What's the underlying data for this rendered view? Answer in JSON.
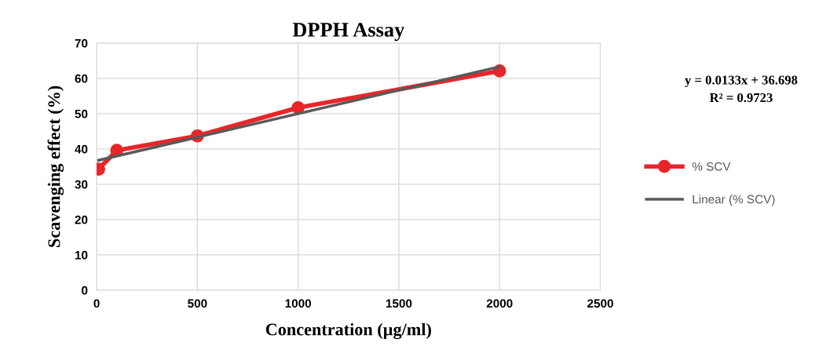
{
  "chart_data": {
    "type": "line",
    "title": "DPPH Assay",
    "xlabel": "Concentration (µg/ml)",
    "ylabel": "Scavenging effect (%)",
    "x": [
      10,
      100,
      500,
      1000,
      2000
    ],
    "series": [
      {
        "name": "% SCV",
        "color": "#e8262a",
        "values": [
          34.3,
          39.6,
          43.7,
          51.7,
          62.1
        ],
        "marker": "circle"
      },
      {
        "name": "Linear (% SCV)",
        "color": "#595959",
        "type": "line",
        "x": [
          10,
          2000
        ],
        "values": [
          36.8,
          63.3
        ],
        "marker": "none"
      }
    ],
    "xlim": [
      0,
      2500
    ],
    "xticks": [
      0,
      500,
      1000,
      1500,
      2000,
      2500
    ],
    "ylim": [
      0,
      70
    ],
    "yticks": [
      0,
      10,
      20,
      30,
      40,
      50,
      60,
      70
    ],
    "annotations": [
      "y = 0.0133x + 36.698",
      "R² = 0.9723"
    ],
    "grid": true,
    "legend": "right",
    "line_style": "solid"
  }
}
